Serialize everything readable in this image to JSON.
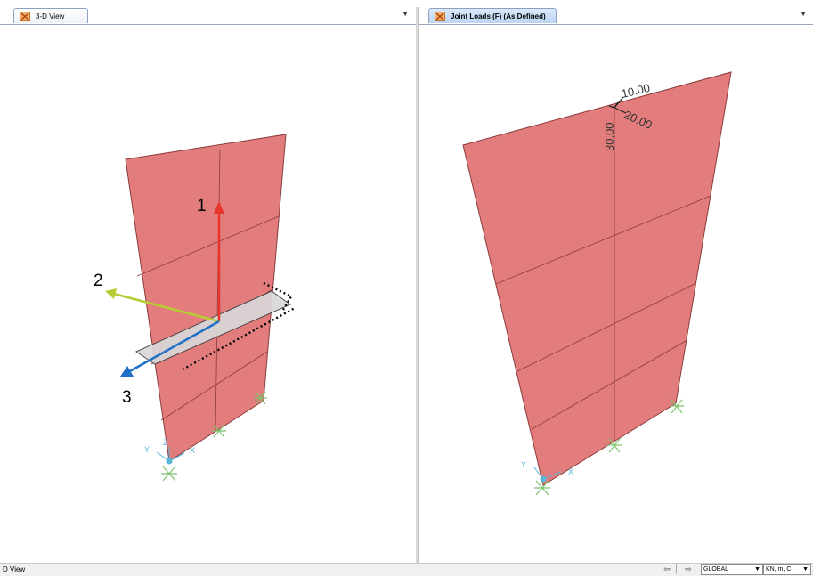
{
  "left_pane": {
    "tab_title": "3-D View",
    "axes": {
      "axis1": "1",
      "axis2": "2",
      "axis3": "3"
    },
    "support_labels": {
      "y": "Y",
      "z": "Z",
      "x": "X"
    }
  },
  "right_pane": {
    "tab_title": "Joint Loads (F) (As Defined)",
    "load_values": [
      "10.00",
      "20.00",
      "30.00"
    ],
    "support_labels": {
      "y": "Y",
      "x": "X"
    }
  },
  "status_bar": {
    "text": "D View",
    "coord_system": "GLOBAL",
    "units": "KN, m, C"
  },
  "colors": {
    "shell": "#e37d7d",
    "axis1": "#e8352b",
    "axis2": "#b7cc34",
    "axis3": "#1f6fc6",
    "support": "#7ac36a"
  }
}
